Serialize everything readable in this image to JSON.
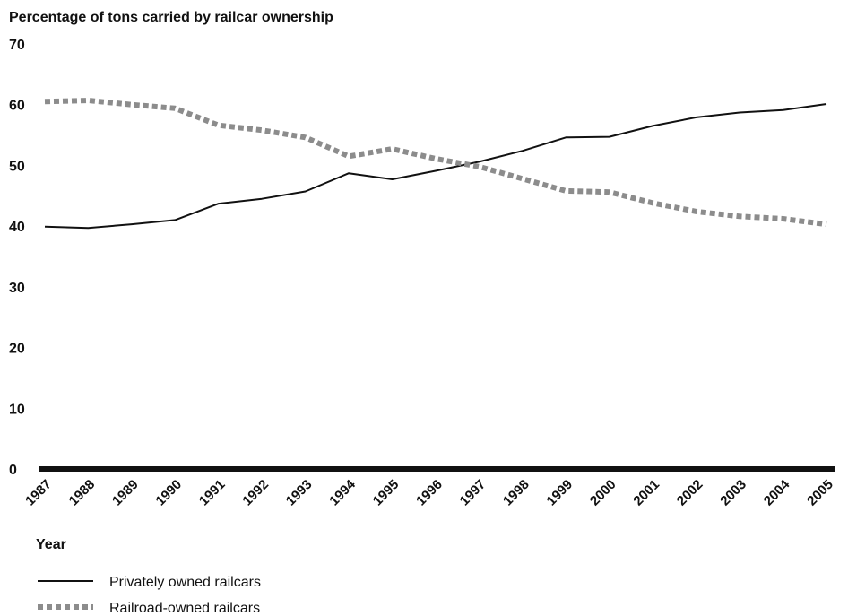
{
  "chart_data": {
    "type": "line",
    "title": "Percentage of tons carried by railcar ownership",
    "xlabel": "Year",
    "ylabel": "",
    "ylim": [
      0,
      70
    ],
    "yticks": [
      0,
      10,
      20,
      30,
      40,
      50,
      60,
      70
    ],
    "x": [
      "1987",
      "1988",
      "1989",
      "1990",
      "1991",
      "1992",
      "1993",
      "1994",
      "1995",
      "1996",
      "1997",
      "1998",
      "1999",
      "2000",
      "2001",
      "2002",
      "2003",
      "2004",
      "2005"
    ],
    "grid": false,
    "legend_position": "bottom-left",
    "series": [
      {
        "name": "Privately owned railcars",
        "style": "solid",
        "color": "#111111",
        "values": [
          39.9,
          39.7,
          40.3,
          41.0,
          43.7,
          44.5,
          45.7,
          48.7,
          47.7,
          49.1,
          50.6,
          52.4,
          54.6,
          54.7,
          56.5,
          57.9,
          58.7,
          59.1,
          60.1
        ]
      },
      {
        "name": "Railroad-owned railcars",
        "style": "dotted",
        "color": "#8c8c8c",
        "values": [
          60.5,
          60.7,
          60.0,
          59.4,
          56.6,
          55.8,
          54.6,
          51.5,
          52.7,
          51.1,
          49.8,
          47.8,
          45.8,
          45.6,
          43.8,
          42.4,
          41.6,
          41.2,
          40.3
        ]
      }
    ]
  }
}
